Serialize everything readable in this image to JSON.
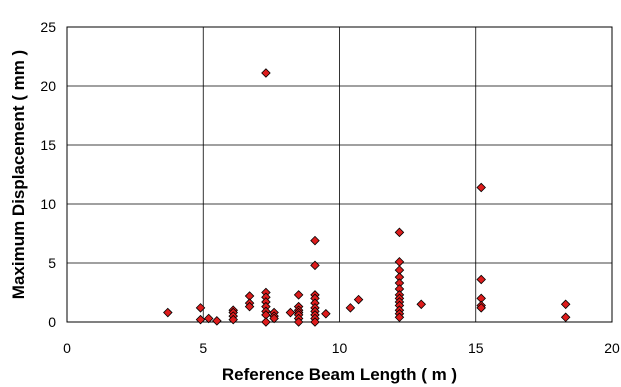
{
  "chart_data": {
    "type": "scatter",
    "xlabel": "Reference Beam Length ( m )",
    "ylabel": "Maximum Displacement ( mm )",
    "xlim": [
      0,
      20
    ],
    "ylim": [
      0,
      25
    ],
    "x_ticks": [
      0,
      5,
      10,
      15,
      20
    ],
    "y_ticks": [
      0,
      5,
      10,
      15,
      20,
      25
    ],
    "grid": true,
    "legend": "none",
    "marker": "diamond",
    "marker_color": "#dd1c1c",
    "series": [
      {
        "points": [
          [
            3.7,
            0.8
          ],
          [
            4.9,
            1.2
          ],
          [
            4.9,
            0.2
          ],
          [
            5.2,
            0.3
          ],
          [
            5.5,
            0.1
          ],
          [
            6.1,
            1.0
          ],
          [
            6.1,
            0.8
          ],
          [
            6.1,
            0.5
          ],
          [
            6.1,
            0.2
          ],
          [
            6.7,
            2.2
          ],
          [
            6.7,
            1.6
          ],
          [
            6.7,
            1.3
          ],
          [
            7.3,
            21.1
          ],
          [
            7.3,
            2.5
          ],
          [
            7.3,
            2.1
          ],
          [
            7.3,
            1.7
          ],
          [
            7.3,
            1.3
          ],
          [
            7.3,
            0.9
          ],
          [
            7.3,
            0.6
          ],
          [
            7.3,
            0.0
          ],
          [
            7.6,
            0.8
          ],
          [
            7.6,
            0.5
          ],
          [
            7.6,
            0.3
          ],
          [
            8.2,
            0.8
          ],
          [
            8.5,
            2.3
          ],
          [
            8.5,
            1.3
          ],
          [
            8.5,
            1.0
          ],
          [
            8.5,
            0.8
          ],
          [
            8.5,
            0.6
          ],
          [
            8.5,
            0.3
          ],
          [
            8.5,
            0.0
          ],
          [
            9.1,
            6.9
          ],
          [
            9.1,
            4.8
          ],
          [
            9.1,
            2.3
          ],
          [
            9.1,
            2.0
          ],
          [
            9.1,
            1.6
          ],
          [
            9.1,
            1.2
          ],
          [
            9.1,
            0.9
          ],
          [
            9.1,
            0.6
          ],
          [
            9.1,
            0.3
          ],
          [
            9.1,
            0.0
          ],
          [
            9.5,
            0.7
          ],
          [
            10.4,
            1.2
          ],
          [
            10.7,
            1.9
          ],
          [
            12.2,
            7.6
          ],
          [
            12.2,
            5.1
          ],
          [
            12.2,
            4.4
          ],
          [
            12.2,
            3.8
          ],
          [
            12.2,
            3.3
          ],
          [
            12.2,
            2.8
          ],
          [
            12.2,
            2.3
          ],
          [
            12.2,
            2.0
          ],
          [
            12.2,
            1.7
          ],
          [
            12.2,
            1.4
          ],
          [
            12.2,
            1.0
          ],
          [
            12.2,
            0.7
          ],
          [
            12.2,
            0.4
          ],
          [
            13.0,
            1.5
          ],
          [
            15.2,
            11.4
          ],
          [
            15.2,
            3.6
          ],
          [
            15.2,
            2.0
          ],
          [
            15.2,
            1.4
          ],
          [
            15.2,
            1.2
          ],
          [
            18.3,
            1.5
          ],
          [
            18.3,
            0.4
          ]
        ]
      }
    ]
  }
}
